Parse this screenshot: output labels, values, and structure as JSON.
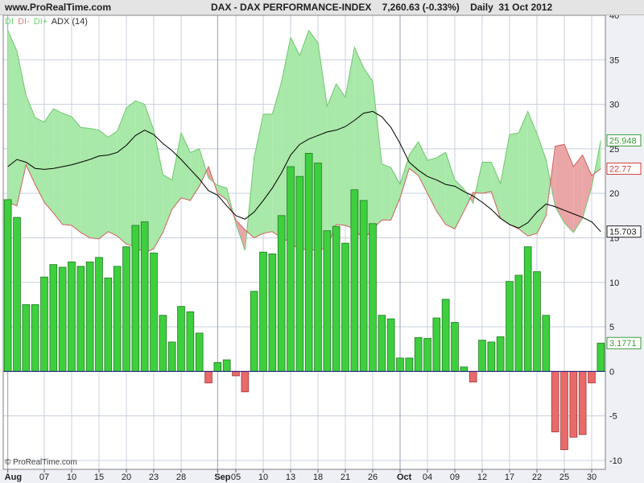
{
  "header": {
    "site": "www.ProRealTime.com",
    "title": "DAX - DAX PERFORMANCE-INDEX    7,260.63 (-0.33%)    Daily  31 Oct 2012"
  },
  "legend": {
    "items": [
      "DI",
      "DI-",
      "DI+",
      "ADX (14)"
    ],
    "colors": [
      "#6fd46f",
      "#e08080",
      "#6fd46f",
      "#303030"
    ]
  },
  "copyright": "© ProRealTime.com",
  "colors": {
    "bar_positive": "#3ecf3e",
    "bar_negative": "#e86a6a",
    "di_plus_fill": "#a8e8a8",
    "di_minus_fill": "#eaa6a6",
    "adx_line": "#000000",
    "grid": "#c8d0dc",
    "zero_line": "#1a1a80"
  },
  "chart_data": {
    "type": "bar",
    "title": "DAX - DAX PERFORMANCE-INDEX",
    "x_tick_labels": [
      "Aug",
      "07",
      "10",
      "15",
      "20",
      "23",
      "28",
      "Sep",
      "05",
      "10",
      "13",
      "18",
      "21",
      "26",
      "Oct",
      "04",
      "09",
      "12",
      "17",
      "22",
      "25",
      "30"
    ],
    "y_tick_labels": [
      "40",
      "35",
      "30",
      "25",
      "20",
      "15",
      "10",
      "5",
      "0",
      "-5",
      "-10"
    ],
    "ylim": [
      -11,
      40
    ],
    "categories": [
      "Aug 01",
      "Aug 02",
      "Aug 03",
      "Aug 06",
      "Aug 07",
      "Aug 08",
      "Aug 09",
      "Aug 10",
      "Aug 13",
      "Aug 14",
      "Aug 15",
      "Aug 16",
      "Aug 17",
      "Aug 20",
      "Aug 21",
      "Aug 22",
      "Aug 23",
      "Aug 24",
      "Aug 27",
      "Aug 28",
      "Aug 29",
      "Aug 30",
      "Aug 31",
      "Sep 03",
      "Sep 04",
      "Sep 05",
      "Sep 06",
      "Sep 07",
      "Sep 10",
      "Sep 11",
      "Sep 12",
      "Sep 13",
      "Sep 14",
      "Sep 17",
      "Sep 18",
      "Sep 19",
      "Sep 20",
      "Sep 21",
      "Sep 24",
      "Sep 25",
      "Sep 26",
      "Sep 27",
      "Sep 28",
      "Oct 01",
      "Oct 02",
      "Oct 03",
      "Oct 04",
      "Oct 05",
      "Oct 08",
      "Oct 09",
      "Oct 10",
      "Oct 11",
      "Oct 12",
      "Oct 15",
      "Oct 16",
      "Oct 17",
      "Oct 18",
      "Oct 19",
      "Oct 22",
      "Oct 23",
      "Oct 24",
      "Oct 25",
      "Oct 26",
      "Oct 29",
      "Oct 30",
      "Oct 31"
    ],
    "series": [
      {
        "name": "DI",
        "values": [
          19.3,
          17.3,
          7.5,
          7.5,
          10.6,
          12.0,
          11.7,
          12.3,
          11.8,
          12.3,
          12.8,
          10.5,
          11.8,
          14.0,
          16.4,
          16.8,
          13.3,
          6.3,
          3.3,
          7.3,
          6.7,
          4.3,
          -1.3,
          1.0,
          1.3,
          -0.5,
          -2.3,
          9.0,
          13.4,
          13.2,
          17.5,
          23.0,
          21.9,
          24.5,
          23.4,
          15.8,
          16.3,
          14.4,
          20.4,
          19.2,
          16.6,
          6.3,
          5.9,
          1.5,
          1.5,
          3.8,
          3.7,
          6.0,
          8.1,
          5.5,
          0.5,
          -1.2,
          3.5,
          3.3,
          3.9,
          10.1,
          10.8,
          14.0,
          11.2,
          6.3,
          -6.8,
          -8.8,
          -7.4,
          -7.1,
          -1.3,
          3.1771
        ]
      },
      {
        "name": "DI-",
        "values": [
          19.0,
          18.6,
          23.2,
          21.0,
          19.0,
          17.8,
          16.5,
          16.4,
          15.6,
          15.0,
          14.9,
          15.7,
          15.2,
          14.3,
          14.0,
          13.3,
          13.8,
          15.6,
          18.2,
          19.5,
          19.2,
          20.8,
          23.0,
          20.0,
          19.3,
          17.0,
          15.9,
          15.0,
          15.5,
          15.7,
          15.0,
          14.5,
          13.6,
          13.8,
          13.5,
          14.0,
          16.5,
          16.4,
          16.0,
          14.8,
          16.0,
          17.0,
          17.0,
          19.5,
          22.8,
          22.0,
          20.0,
          18.0,
          16.5,
          16.0,
          18.0,
          20.1,
          20.0,
          20.2,
          17.2,
          16.5,
          16.0,
          15.2,
          15.5,
          17.5,
          25.3,
          25.5,
          23.0,
          24.3,
          22.0,
          22.77
        ]
      },
      {
        "name": "DI+",
        "values": [
          38.3,
          36.0,
          31.0,
          28.5,
          28.0,
          29.5,
          29.0,
          28.6,
          27.4,
          27.3,
          27.1,
          26.3,
          27.0,
          29.6,
          30.4,
          30.0,
          27.1,
          22.1,
          21.5,
          26.8,
          24.6,
          25.0,
          21.7,
          20.9,
          20.6,
          16.6,
          13.6,
          24.0,
          28.9,
          28.9,
          32.5,
          37.5,
          35.5,
          38.3,
          36.9,
          29.8,
          32.3,
          30.8,
          36.4,
          34.1,
          32.6,
          23.3,
          22.9,
          21.0,
          24.3,
          25.8,
          23.7,
          24.0,
          24.6,
          21.5,
          20.5,
          18.9,
          23.5,
          23.5,
          21.1,
          26.6,
          26.8,
          29.2,
          26.7,
          23.8,
          18.5,
          16.7,
          15.6,
          17.2,
          20.7,
          25.948
        ]
      },
      {
        "name": "ADX (14)",
        "values": [
          23.0,
          23.8,
          23.5,
          22.8,
          22.7,
          22.8,
          23.0,
          23.2,
          23.5,
          23.8,
          24.2,
          24.3,
          24.6,
          25.4,
          26.5,
          27.1,
          26.6,
          25.6,
          24.8,
          23.8,
          22.7,
          21.6,
          20.3,
          19.8,
          18.6,
          17.5,
          17.1,
          17.9,
          19.2,
          20.6,
          22.3,
          24.3,
          25.5,
          26.1,
          26.5,
          26.9,
          27.1,
          27.5,
          28.2,
          29.0,
          29.2,
          28.6,
          27.4,
          25.6,
          23.5,
          22.6,
          21.9,
          21.5,
          21.0,
          20.8,
          20.2,
          19.7,
          19.0,
          18.2,
          17.2,
          16.5,
          16.1,
          16.7,
          17.9,
          18.8,
          18.5,
          18.1,
          17.7,
          17.3,
          16.8,
          15.703
        ]
      }
    ],
    "last_value_labels": [
      "25.948",
      "22.77",
      "15.703",
      "3.1771"
    ],
    "grid": true,
    "legend_position": "top-left"
  }
}
